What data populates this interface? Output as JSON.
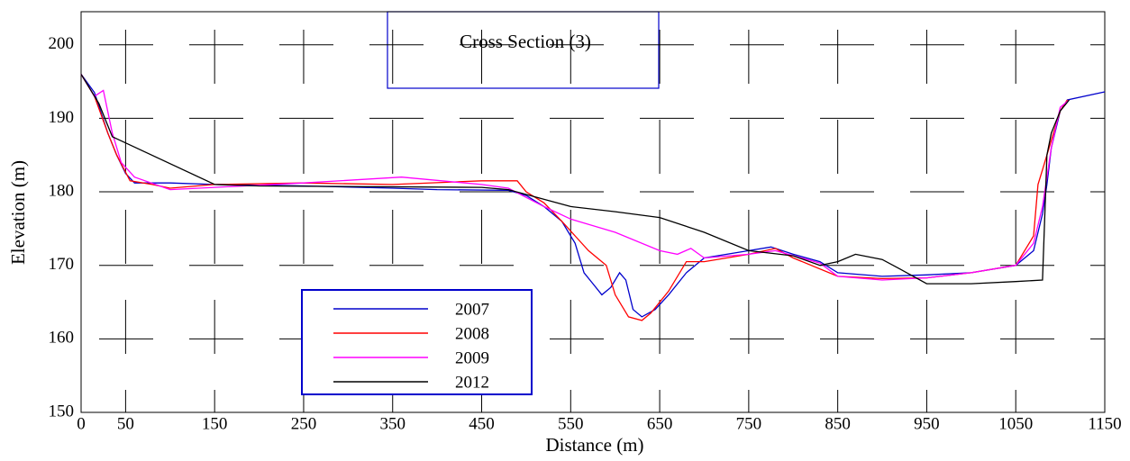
{
  "chart_data": {
    "type": "line",
    "title": "Cross Section (3)",
    "x_label": "Distance (m)",
    "y_label": "Elevation (m)",
    "xlim": [
      0,
      1150
    ],
    "ylim": [
      150,
      204.5
    ],
    "xticks": [
      0,
      50,
      150,
      250,
      350,
      450,
      550,
      650,
      750,
      850,
      950,
      1050,
      1150
    ],
    "yticks": [
      150,
      160,
      170,
      180,
      190,
      200
    ],
    "grid": true,
    "series": [
      {
        "name": "2007",
        "color": "#0000cc",
        "x": [
          0,
          15,
          30,
          40,
          50,
          60,
          100,
          150,
          250,
          350,
          400,
          480,
          500,
          520,
          540,
          555,
          565,
          575,
          585,
          595,
          605,
          612,
          620,
          630,
          645,
          660,
          680,
          700,
          750,
          775,
          800,
          830,
          850,
          900,
          950,
          1000,
          1050,
          1070,
          1080,
          1085,
          1090,
          1100,
          1108,
          1150
        ],
        "values": [
          196,
          193.5,
          188,
          185,
          182.5,
          181.2,
          181.2,
          181,
          180.8,
          180.5,
          180.3,
          180.2,
          179.5,
          178,
          176,
          173,
          169,
          167.5,
          166,
          167,
          169,
          168,
          164,
          163,
          164,
          166,
          169,
          171,
          172,
          172.5,
          171.5,
          170.5,
          169,
          168.5,
          168.7,
          169,
          170,
          172,
          177,
          181,
          186,
          191,
          192.5,
          193.6
        ]
      },
      {
        "name": "2008",
        "color": "#ff0000",
        "x": [
          0,
          15,
          30,
          40,
          55,
          80,
          100,
          150,
          250,
          350,
          450,
          490,
          500,
          520,
          540,
          555,
          570,
          590,
          600,
          615,
          630,
          640,
          660,
          680,
          700,
          750,
          780,
          800,
          850,
          900,
          950,
          1000,
          1050,
          1070,
          1075,
          1080,
          1090,
          1100,
          1108
        ],
        "values": [
          196,
          193,
          188,
          185,
          181.5,
          181,
          180.5,
          181,
          181.2,
          181,
          181.5,
          181.5,
          180,
          178.5,
          176,
          174,
          172,
          170,
          166,
          163,
          162.5,
          163.5,
          166.5,
          170.5,
          170.5,
          171.5,
          172.3,
          171,
          168.5,
          168.2,
          168.3,
          169,
          170,
          174,
          181,
          183,
          187,
          191,
          192.5
        ]
      },
      {
        "name": "2009",
        "color": "#ff00ff",
        "x": [
          0,
          15,
          25,
          35,
          45,
          60,
          100,
          150,
          250,
          360,
          450,
          480,
          520,
          550,
          600,
          650,
          670,
          685,
          700,
          750,
          780,
          830,
          850,
          900,
          950,
          1000,
          1050,
          1070,
          1080,
          1090,
          1100,
          1110
        ],
        "values": [
          196,
          193,
          193.8,
          188,
          184,
          182,
          180.3,
          180.6,
          181.2,
          182,
          181,
          180.5,
          178,
          176.3,
          174.5,
          172,
          171.5,
          172.3,
          171,
          171.5,
          172,
          170.3,
          168.5,
          168,
          168.3,
          169,
          170,
          173,
          178,
          186,
          191.5,
          192.5
        ]
      },
      {
        "name": "2012",
        "color": "#000000",
        "x": [
          0,
          20,
          35,
          150,
          200,
          450,
          480,
          550,
          600,
          650,
          700,
          750,
          800,
          830,
          850,
          870,
          900,
          920,
          950,
          1000,
          1050,
          1080,
          1083,
          1085,
          1090,
          1100,
          1110
        ],
        "values": [
          196,
          192,
          187.5,
          181,
          180.8,
          180.6,
          180.3,
          178,
          177.3,
          176.5,
          174.5,
          172,
          171.3,
          170,
          170.5,
          171.5,
          170.8,
          169.5,
          167.5,
          167.5,
          167.8,
          168,
          178,
          185,
          188,
          191,
          192.5
        ]
      }
    ]
  }
}
